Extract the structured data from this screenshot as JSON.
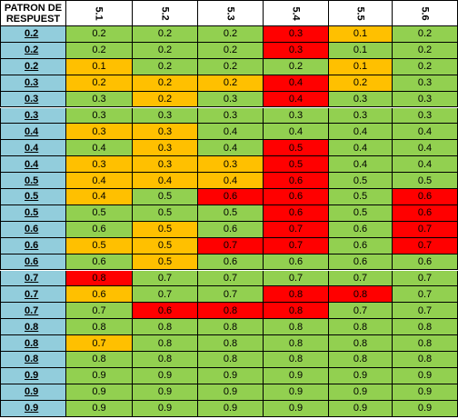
{
  "header": {
    "first": "PATRON DE RESPUEST",
    "columns": [
      "5.1",
      "5.2",
      "5.3",
      "5.4",
      "5.5",
      "5.6"
    ]
  },
  "colors": {
    "green": "#92d050",
    "orange": "#ffc000",
    "red": "#ff0000",
    "key": "#92cddc"
  },
  "rows": [
    {
      "key": "0.2",
      "v": [
        "0.2",
        "0.2",
        "0.2",
        "0.3",
        "0.1",
        "0.2"
      ],
      "c": [
        "g",
        "g",
        "g",
        "r",
        "o",
        "g"
      ]
    },
    {
      "key": "0.2",
      "v": [
        "0.2",
        "0.2",
        "0.2",
        "0.3",
        "0.1",
        "0.2"
      ],
      "c": [
        "g",
        "g",
        "g",
        "r",
        "g",
        "g"
      ]
    },
    {
      "key": "0.2",
      "v": [
        "0.1",
        "0.2",
        "0.2",
        "0.2",
        "0.1",
        "0.2"
      ],
      "c": [
        "o",
        "g",
        "g",
        "g",
        "o",
        "g"
      ]
    },
    {
      "key": "0.3",
      "v": [
        "0.2",
        "0.2",
        "0.2",
        "0.4",
        "0.2",
        "0.3"
      ],
      "c": [
        "o",
        "o",
        "o",
        "r",
        "o",
        "g"
      ]
    },
    {
      "key": "0.3",
      "v": [
        "0.3",
        "0.2",
        "0.3",
        "0.4",
        "0.3",
        "0.3"
      ],
      "c": [
        "g",
        "o",
        "g",
        "r",
        "g",
        "g"
      ]
    },
    {
      "key": "0.3",
      "v": [
        "0.3",
        "0.3",
        "0.3",
        "0.3",
        "0.3",
        "0.3"
      ],
      "c": [
        "g",
        "g",
        "g",
        "g",
        "g",
        "g"
      ]
    },
    {
      "key": "0.4",
      "v": [
        "0.3",
        "0.3",
        "0.4",
        "0.4",
        "0.4",
        "0.4"
      ],
      "c": [
        "o",
        "o",
        "g",
        "g",
        "g",
        "g"
      ]
    },
    {
      "key": "0.4",
      "v": [
        "0.4",
        "0.3",
        "0.4",
        "0.5",
        "0.4",
        "0.4"
      ],
      "c": [
        "g",
        "o",
        "g",
        "r",
        "g",
        "g"
      ]
    },
    {
      "key": "0.4",
      "v": [
        "0.3",
        "0.3",
        "0.3",
        "0.5",
        "0.4",
        "0.4"
      ],
      "c": [
        "o",
        "o",
        "o",
        "r",
        "g",
        "g"
      ]
    },
    {
      "key": "0.5",
      "v": [
        "0.4",
        "0.4",
        "0.4",
        "0.6",
        "0.5",
        "0.5"
      ],
      "c": [
        "o",
        "o",
        "o",
        "r",
        "g",
        "g"
      ]
    },
    {
      "key": "0.5",
      "v": [
        "0.4",
        "0.5",
        "0.6",
        "0.6",
        "0.5",
        "0.6"
      ],
      "c": [
        "o",
        "g",
        "r",
        "r",
        "g",
        "r"
      ]
    },
    {
      "key": "0.5",
      "v": [
        "0.5",
        "0.5",
        "0.5",
        "0.6",
        "0.5",
        "0.6"
      ],
      "c": [
        "g",
        "g",
        "g",
        "r",
        "g",
        "r"
      ]
    },
    {
      "key": "0.6",
      "v": [
        "0.6",
        "0.5",
        "0.6",
        "0.7",
        "0.6",
        "0.7"
      ],
      "c": [
        "g",
        "o",
        "g",
        "r",
        "g",
        "r"
      ]
    },
    {
      "key": "0.6",
      "v": [
        "0.5",
        "0.5",
        "0.7",
        "0.7",
        "0.6",
        "0.7"
      ],
      "c": [
        "o",
        "o",
        "r",
        "r",
        "g",
        "r"
      ]
    },
    {
      "key": "0.6",
      "v": [
        "0.6",
        "0.5",
        "0.6",
        "0.6",
        "0.6",
        "0.6"
      ],
      "c": [
        "g",
        "o",
        "g",
        "g",
        "g",
        "g"
      ]
    },
    {
      "key": "0.7",
      "v": [
        "0.8",
        "0.7",
        "0.7",
        "0.7",
        "0.7",
        "0.7"
      ],
      "c": [
        "r",
        "g",
        "g",
        "g",
        "g",
        "g"
      ]
    },
    {
      "key": "0.7",
      "v": [
        "0.6",
        "0.7",
        "0.7",
        "0.8",
        "0.8",
        "0.7"
      ],
      "c": [
        "o",
        "g",
        "g",
        "r",
        "r",
        "g"
      ]
    },
    {
      "key": "0.7",
      "v": [
        "0.7",
        "0.6",
        "0.8",
        "0.8",
        "0.7",
        "0.7"
      ],
      "c": [
        "g",
        "r",
        "r",
        "r",
        "g",
        "g"
      ]
    },
    {
      "key": "0.8",
      "v": [
        "0.8",
        "0.8",
        "0.8",
        "0.8",
        "0.8",
        "0.8"
      ],
      "c": [
        "g",
        "g",
        "g",
        "g",
        "g",
        "g"
      ]
    },
    {
      "key": "0.8",
      "v": [
        "0.7",
        "0.8",
        "0.8",
        "0.8",
        "0.8",
        "0.8"
      ],
      "c": [
        "o",
        "g",
        "g",
        "g",
        "g",
        "g"
      ]
    },
    {
      "key": "0.8",
      "v": [
        "0.8",
        "0.8",
        "0.8",
        "0.8",
        "0.8",
        "0.8"
      ],
      "c": [
        "g",
        "g",
        "g",
        "g",
        "g",
        "g"
      ]
    },
    {
      "key": "0.9",
      "v": [
        "0.9",
        "0.9",
        "0.9",
        "0.9",
        "0.9",
        "0.9"
      ],
      "c": [
        "g",
        "g",
        "g",
        "g",
        "g",
        "g"
      ]
    },
    {
      "key": "0.9",
      "v": [
        "0.9",
        "0.9",
        "0.9",
        "0.9",
        "0.9",
        "0.9"
      ],
      "c": [
        "g",
        "g",
        "g",
        "g",
        "g",
        "g"
      ]
    },
    {
      "key": "0.9",
      "v": [
        "0.9",
        "0.9",
        "0.9",
        "0.9",
        "0.9",
        "0.9"
      ],
      "c": [
        "g",
        "g",
        "g",
        "g",
        "g",
        "g"
      ]
    }
  ]
}
